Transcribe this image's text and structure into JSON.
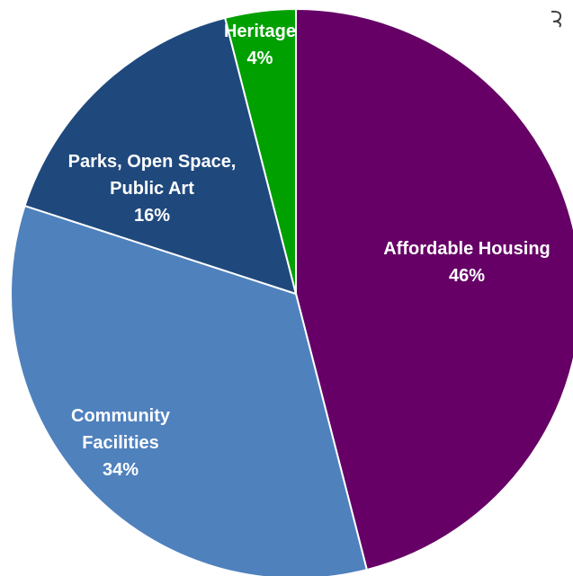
{
  "chart_data": {
    "type": "pie",
    "title": "",
    "categories": [
      "Affordable Housing",
      "Community Facilities",
      "Parks, Open Space, Public Art",
      "Heritage"
    ],
    "values": [
      46,
      34,
      16,
      4
    ],
    "value_suffix": "%",
    "start": "12 o'clock",
    "direction": "clockwise",
    "legend": "none",
    "slices": [
      {
        "name": "Affordable Housing",
        "label_lines": [
          "Affordable Housing"
        ],
        "pct_label": "46%",
        "value": 46,
        "color": "#660066",
        "label_color": "#ffffff"
      },
      {
        "name": "Community Facilities",
        "label_lines": [
          "Community",
          "Facilities"
        ],
        "pct_label": "34%",
        "value": 34,
        "color": "#4f81bd",
        "label_color": "#ffffff"
      },
      {
        "name": "Parks, Open Space, Public Art",
        "label_lines": [
          "Parks, Open Space,",
          "Public Art"
        ],
        "pct_label": "16%",
        "value": 16,
        "color": "#1f497d",
        "label_color": "#ffffff"
      },
      {
        "name": "Heritage",
        "label_lines": [
          "Heritage"
        ],
        "pct_label": "4%",
        "value": 4,
        "color": "#00a000",
        "label_color": "#ffffff"
      }
    ],
    "slice_border_color": "#ffffff"
  }
}
